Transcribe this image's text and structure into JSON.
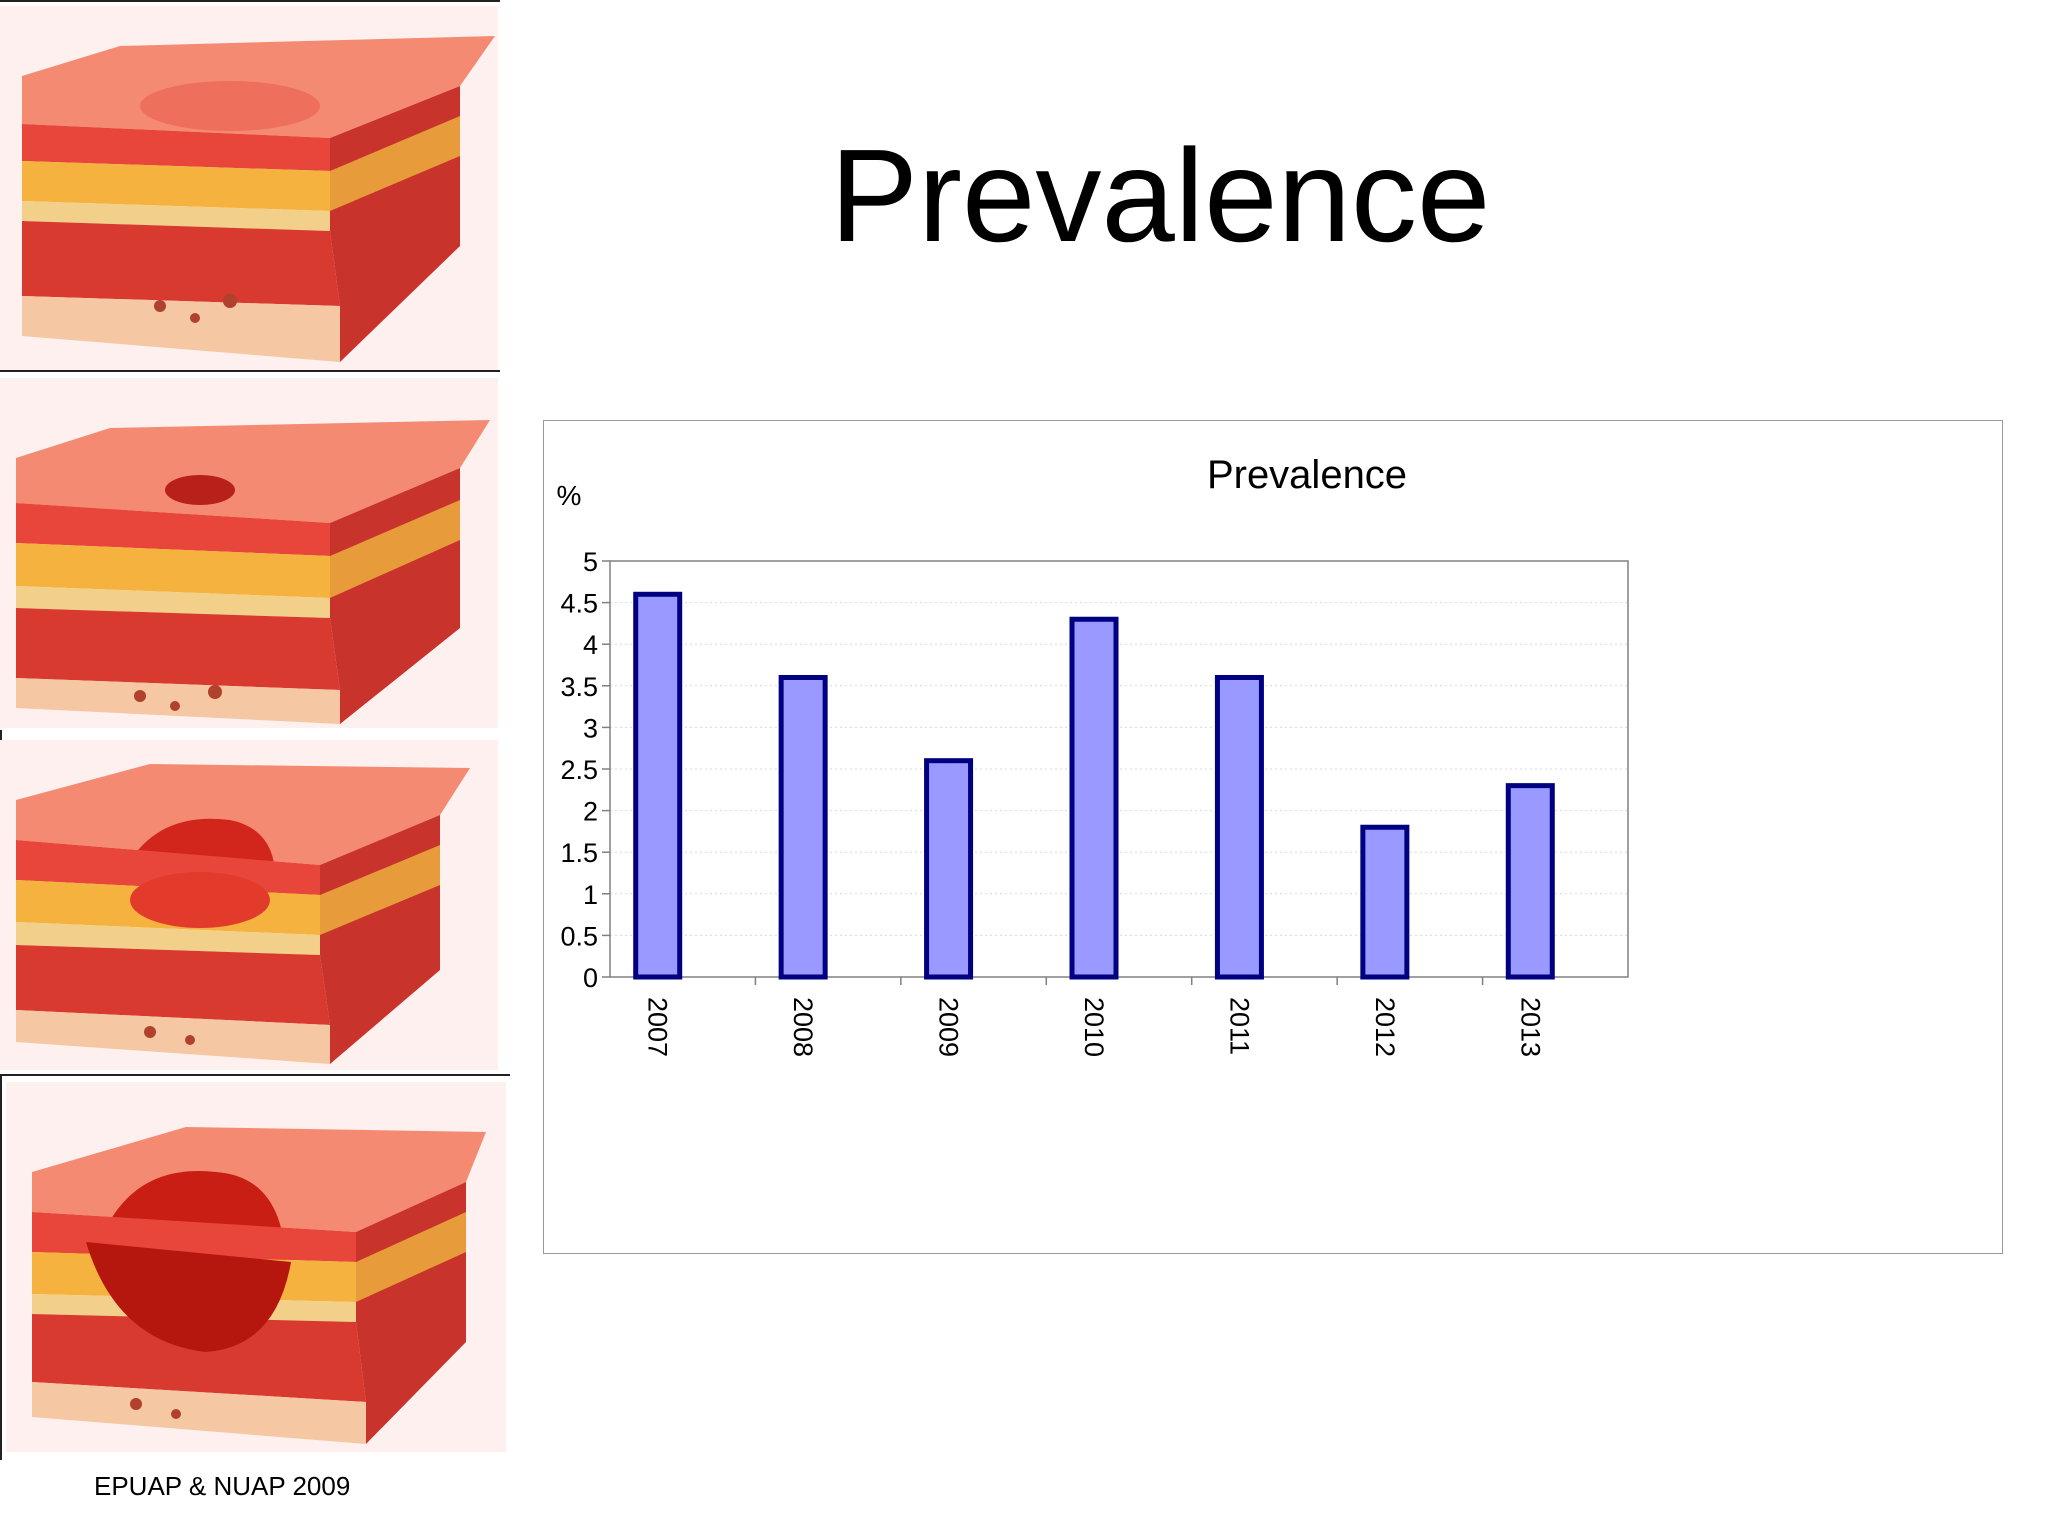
{
  "slide": {
    "title": "Prevalence",
    "credit": "EPUAP & NUAP 2009"
  },
  "illustrations": [
    {
      "name": "stage-1-illustration"
    },
    {
      "name": "stage-2-illustration"
    },
    {
      "name": "stage-3-illustration"
    },
    {
      "name": "stage-4-illustration"
    }
  ],
  "colors": {
    "bar_fill": "#9999ff",
    "bar_stroke": "#000080",
    "frame": "#9a9a9a",
    "grid": "#d9d9d9"
  },
  "chart_data": {
    "type": "bar",
    "title": "Prevalence",
    "ylabel": "%",
    "xlabel": "",
    "categories": [
      "2007",
      "2008",
      "2009",
      "2010",
      "2011",
      "2012",
      "2013"
    ],
    "values": [
      4.6,
      3.6,
      2.6,
      4.3,
      3.6,
      1.8,
      2.3
    ],
    "ylim": [
      0,
      5
    ],
    "yticks": [
      "0",
      "0.5",
      "1",
      "1.5",
      "2",
      "2.5",
      "3",
      "3.5",
      "4",
      "4.5",
      "5"
    ],
    "grid": true,
    "legend": "none"
  }
}
